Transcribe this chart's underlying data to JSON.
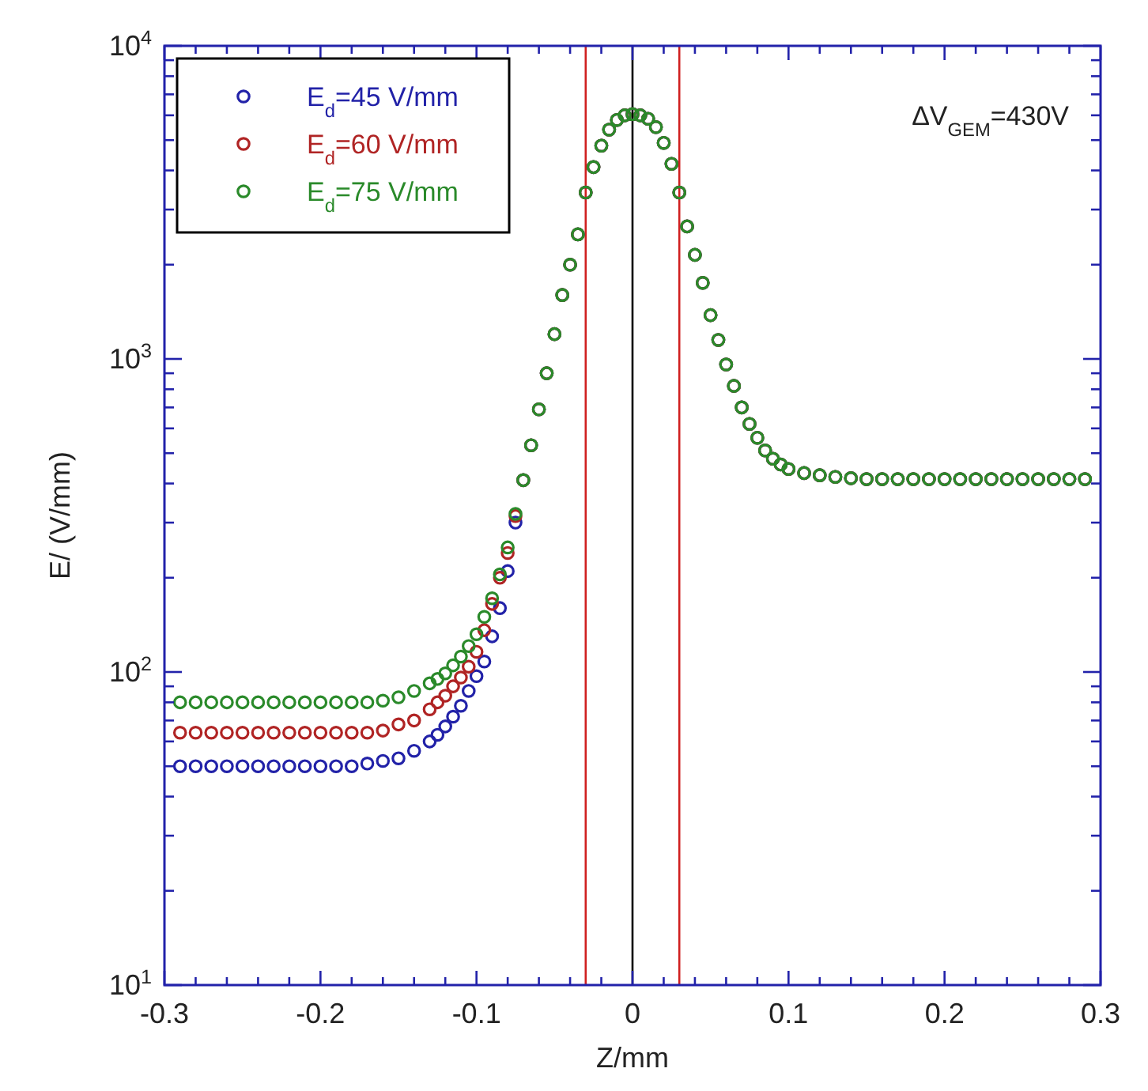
{
  "chart_data": {
    "type": "scatter",
    "xlabel": "Z/mm",
    "ylabel": "E/ (V/mm)",
    "log": "y",
    "marker": "circle",
    "legend": "top left",
    "grid": false,
    "xlim": [
      -0.3,
      0.3
    ],
    "xticks": [
      -0.3,
      {
        "value": -0.28,
        "label": null
      },
      {
        "value": -0.26,
        "label": null
      },
      {
        "value": -0.24,
        "label": null
      },
      {
        "value": -0.22,
        "label": null
      },
      -0.2,
      {
        "value": -0.18,
        "label": null
      },
      {
        "value": -0.16,
        "label": null
      },
      {
        "value": -0.14,
        "label": null
      },
      {
        "value": -0.12,
        "label": null
      },
      -0.1,
      {
        "value": -0.08,
        "label": null
      },
      {
        "value": -0.06,
        "label": null
      },
      {
        "value": -0.04,
        "label": null
      },
      {
        "value": -0.02,
        "label": null
      },
      0,
      {
        "value": 0.02,
        "label": null
      },
      {
        "value": 0.04,
        "label": null
      },
      {
        "value": 0.06,
        "label": null
      },
      {
        "value": 0.08,
        "label": null
      },
      0.1,
      {
        "value": 0.12,
        "label": null
      },
      {
        "value": 0.14,
        "label": null
      },
      {
        "value": 0.16,
        "label": null
      },
      {
        "value": 0.18,
        "label": null
      },
      0.2,
      {
        "value": 0.22,
        "label": null
      },
      {
        "value": 0.24,
        "label": null
      },
      {
        "value": 0.26,
        "label": null
      },
      {
        "value": 0.28,
        "label": null
      },
      0.3
    ],
    "ylim": [
      10,
      10000
    ],
    "yticks": [
      {
        "value": 10,
        "label": "10$^{1}$"
      },
      {
        "value": 20,
        "label": null
      },
      {
        "value": 30,
        "label": null
      },
      {
        "value": 40,
        "label": null
      },
      {
        "value": 50,
        "label": null
      },
      {
        "value": 60,
        "label": null
      },
      {
        "value": 70,
        "label": null
      },
      {
        "value": 80,
        "label": null
      },
      {
        "value": 90,
        "label": null
      },
      {
        "value": 100,
        "label": "10$^{2}$"
      },
      {
        "value": 200,
        "label": null
      },
      {
        "value": 300,
        "label": null
      },
      {
        "value": 400,
        "label": null
      },
      {
        "value": 500,
        "label": null
      },
      {
        "value": 600,
        "label": null
      },
      {
        "value": 700,
        "label": null
      },
      {
        "value": 800,
        "label": null
      },
      {
        "value": 900,
        "label": null
      },
      {
        "value": 1000,
        "label": "10$^{3}$"
      },
      {
        "value": 2000,
        "label": null
      },
      {
        "value": 3000,
        "label": null
      },
      {
        "value": 4000,
        "label": null
      },
      {
        "value": 5000,
        "label": null
      },
      {
        "value": 6000,
        "label": null
      },
      {
        "value": 7000,
        "label": null
      },
      {
        "value": 8000,
        "label": null
      },
      {
        "value": 9000,
        "label": null
      },
      {
        "value": 10000,
        "label": "10$^{4}$"
      }
    ],
    "x": [
      -0.29,
      -0.28,
      -0.27,
      -0.26,
      -0.25,
      -0.24,
      -0.23,
      -0.22,
      -0.21,
      -0.2,
      -0.19,
      -0.18,
      -0.17,
      -0.16,
      -0.15,
      -0.14,
      -0.13,
      -0.125,
      -0.12,
      -0.115,
      -0.11,
      -0.105,
      -0.1,
      -0.095,
      -0.09,
      -0.085,
      -0.08,
      -0.075,
      -0.07,
      -0.065,
      -0.06,
      -0.055,
      -0.05,
      -0.045,
      -0.04,
      -0.035,
      -0.03,
      -0.025,
      -0.02,
      -0.015,
      -0.01,
      -0.005,
      0,
      0.005,
      0.01,
      0.015,
      0.02,
      0.025,
      0.03,
      0.035,
      0.04,
      0.045,
      0.05,
      0.055,
      0.06,
      0.065,
      0.07,
      0.075,
      0.08,
      0.085,
      0.09,
      0.095,
      0.1,
      0.11,
      0.12,
      0.13,
      0.14,
      0.15,
      0.16,
      0.17,
      0.18,
      0.19,
      0.2,
      0.21,
      0.22,
      0.23,
      0.24,
      0.25,
      0.26,
      0.27,
      0.28,
      0.29
    ],
    "series": [
      {
        "name": "E$_{d}$=45 V/mm",
        "color": "#2222a8",
        "values": [
          50,
          50,
          50,
          50,
          50,
          50,
          50,
          50,
          50,
          50,
          50,
          50,
          51,
          52,
          53,
          56,
          60,
          63,
          67,
          72,
          78,
          87,
          97,
          108,
          130,
          160,
          210,
          300,
          410,
          530,
          690,
          900,
          1200,
          1600,
          2000,
          2500,
          3400,
          4100,
          4800,
          5400,
          5800,
          6000,
          6050,
          6000,
          5850,
          5500,
          4900,
          4200,
          3400,
          2650,
          2150,
          1750,
          1380,
          1150,
          960,
          820,
          700,
          620,
          560,
          510,
          480,
          460,
          445,
          432,
          425,
          420,
          416,
          413,
          413,
          413,
          413,
          413,
          413,
          413,
          413,
          413,
          413,
          413,
          413,
          413,
          413,
          413
        ]
      },
      {
        "name": "E$_{d}$=60 V/mm",
        "color": "#b02424",
        "values": [
          64,
          64,
          64,
          64,
          64,
          64,
          64,
          64,
          64,
          64,
          64,
          64,
          64,
          65,
          68,
          70,
          76,
          80,
          84,
          90,
          96,
          104,
          116,
          136,
          165,
          200,
          240,
          315,
          410,
          530,
          690,
          900,
          1200,
          1600,
          2000,
          2500,
          3400,
          4100,
          4800,
          5400,
          5800,
          6000,
          6050,
          6000,
          5850,
          5500,
          4900,
          4200,
          3400,
          2650,
          2150,
          1750,
          1380,
          1150,
          960,
          820,
          700,
          620,
          560,
          510,
          480,
          460,
          445,
          432,
          425,
          420,
          416,
          413,
          413,
          413,
          413,
          413,
          413,
          413,
          413,
          413,
          413,
          413,
          413,
          413,
          413,
          413
        ]
      },
      {
        "name": "E$_{d}$=75 V/mm",
        "color": "#2a8a2a",
        "values": [
          80,
          80,
          80,
          80,
          80,
          80,
          80,
          80,
          80,
          80,
          80,
          80,
          80,
          81,
          83,
          87,
          92,
          95,
          99,
          105,
          112,
          121,
          132,
          150,
          172,
          205,
          250,
          320,
          410,
          530,
          690,
          900,
          1200,
          1600,
          2000,
          2500,
          3400,
          4100,
          4800,
          5400,
          5800,
          6000,
          6050,
          6000,
          5850,
          5500,
          4900,
          4200,
          3400,
          2650,
          2150,
          1750,
          1380,
          1150,
          960,
          820,
          700,
          620,
          560,
          510,
          480,
          460,
          445,
          432,
          425,
          420,
          416,
          413,
          413,
          413,
          413,
          413,
          413,
          413,
          413,
          413,
          413,
          413,
          413,
          413,
          413,
          413
        ]
      }
    ],
    "ref_lines": [
      {
        "axis": "x",
        "value": -0.03,
        "color": "#d02020"
      },
      {
        "axis": "x",
        "value": 0,
        "color": "#000000"
      },
      {
        "axis": "x",
        "value": 0.03,
        "color": "#d02020"
      }
    ],
    "annotations": [
      "ΔV$_{GEM}$=430V"
    ]
  }
}
